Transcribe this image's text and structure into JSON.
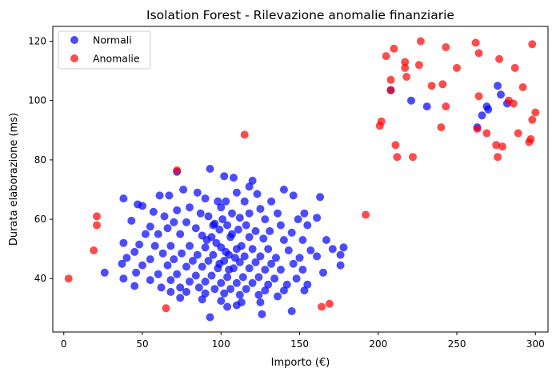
{
  "chart_data": {
    "type": "scatter",
    "title": "Isolation Forest - Rilevazione anomalie finanziarie",
    "xlabel": "Importo (€)",
    "ylabel": "Durata elaborazione (ms)",
    "xlim": [
      -7,
      308
    ],
    "ylim": [
      22,
      125
    ],
    "xticks": [
      0,
      50,
      100,
      150,
      200,
      250,
      300
    ],
    "yticks": [
      40,
      60,
      80,
      100,
      120
    ],
    "grid": false,
    "legend_position": "top-left",
    "series": [
      {
        "name": "Normali",
        "color": "#0000ff",
        "points": [
          [
            93,
            77
          ],
          [
            72,
            76
          ],
          [
            102,
            74.5
          ],
          [
            108,
            74
          ],
          [
            120,
            73
          ],
          [
            118,
            71
          ],
          [
            76,
            70
          ],
          [
            140,
            70
          ],
          [
            85,
            69
          ],
          [
            110,
            69
          ],
          [
            123,
            68.5
          ],
          [
            61,
            68
          ],
          [
            67,
            68
          ],
          [
            38,
            67
          ],
          [
            163,
            67.5
          ],
          [
            146,
            68
          ],
          [
            90,
            67
          ],
          [
            98,
            66
          ],
          [
            115,
            66
          ],
          [
            132,
            66
          ],
          [
            103,
            66
          ],
          [
            47,
            65
          ],
          [
            50,
            64.5
          ],
          [
            80,
            64
          ],
          [
            100,
            64
          ],
          [
            125,
            63.5
          ],
          [
            72,
            63
          ],
          [
            57,
            62.5
          ],
          [
            87,
            62
          ],
          [
            107,
            62
          ],
          [
            118,
            62
          ],
          [
            136,
            62
          ],
          [
            153,
            62
          ],
          [
            64,
            61
          ],
          [
            92,
            61
          ],
          [
            112,
            60.5
          ],
          [
            128,
            60
          ],
          [
            149,
            60
          ],
          [
            161,
            60.5
          ],
          [
            43,
            59.5
          ],
          [
            70,
            59
          ],
          [
            78,
            59
          ],
          [
            96,
            58.5
          ],
          [
            104,
            58
          ],
          [
            116,
            58
          ],
          [
            138,
            58
          ],
          [
            155,
            58
          ],
          [
            55,
            57.5
          ],
          [
            66,
            57
          ],
          [
            84,
            57
          ],
          [
            99,
            56.5
          ],
          [
            111,
            56.5
          ],
          [
            122,
            56
          ],
          [
            131,
            56
          ],
          [
            145,
            55.5
          ],
          [
            52,
            55
          ],
          [
            60,
            55
          ],
          [
            74,
            55
          ],
          [
            88,
            54.5
          ],
          [
            94,
            54
          ],
          [
            106,
            54
          ],
          [
            118,
            54
          ],
          [
            127,
            53.5
          ],
          [
            140,
            53
          ],
          [
            152,
            53
          ],
          [
            167,
            53
          ],
          [
            178,
            50.5
          ],
          [
            38,
            52
          ],
          [
            48,
            51.5
          ],
          [
            58,
            51
          ],
          [
            68,
            51
          ],
          [
            80,
            51
          ],
          [
            90,
            50.5
          ],
          [
            100,
            50.5
          ],
          [
            110,
            50
          ],
          [
            120,
            50
          ],
          [
            130,
            50
          ],
          [
            143,
            49.5
          ],
          [
            157,
            49.5
          ],
          [
            171,
            50
          ],
          [
            176,
            48
          ],
          [
            45,
            49
          ],
          [
            63,
            48.5
          ],
          [
            75,
            48.5
          ],
          [
            85,
            48
          ],
          [
            95,
            48
          ],
          [
            105,
            48
          ],
          [
            115,
            47.5
          ],
          [
            125,
            47.5
          ],
          [
            135,
            47
          ],
          [
            150,
            47
          ],
          [
            161,
            47.5
          ],
          [
            40,
            47
          ],
          [
            55,
            46.5
          ],
          [
            70,
            46.5
          ],
          [
            82,
            46
          ],
          [
            92,
            46
          ],
          [
            102,
            46
          ],
          [
            112,
            45.5
          ],
          [
            122,
            45.5
          ],
          [
            132,
            45
          ],
          [
            146,
            45
          ],
          [
            37,
            45
          ],
          [
            50,
            44.5
          ],
          [
            66,
            44.5
          ],
          [
            78,
            44
          ],
          [
            88,
            44
          ],
          [
            98,
            43.5
          ],
          [
            108,
            43.5
          ],
          [
            118,
            43.5
          ],
          [
            128,
            43
          ],
          [
            138,
            43
          ],
          [
            152,
            43
          ],
          [
            165,
            42
          ],
          [
            176,
            44.5
          ],
          [
            26,
            42
          ],
          [
            46,
            42
          ],
          [
            60,
            41.5
          ],
          [
            72,
            41.5
          ],
          [
            84,
            41
          ],
          [
            94,
            41
          ],
          [
            104,
            40.5
          ],
          [
            114,
            40.5
          ],
          [
            124,
            40.5
          ],
          [
            134,
            40
          ],
          [
            148,
            40
          ],
          [
            38,
            40
          ],
          [
            55,
            39.5
          ],
          [
            68,
            39.5
          ],
          [
            80,
            39
          ],
          [
            90,
            39
          ],
          [
            100,
            38.5
          ],
          [
            110,
            38.5
          ],
          [
            120,
            38.5
          ],
          [
            130,
            38
          ],
          [
            142,
            38
          ],
          [
            155,
            38
          ],
          [
            45,
            37.5
          ],
          [
            62,
            37
          ],
          [
            74,
            37
          ],
          [
            86,
            37
          ],
          [
            96,
            36.5
          ],
          [
            106,
            36.5
          ],
          [
            116,
            36.5
          ],
          [
            128,
            36
          ],
          [
            140,
            36
          ],
          [
            153,
            36
          ],
          [
            68,
            35.5
          ],
          [
            78,
            35.5
          ],
          [
            90,
            35
          ],
          [
            102,
            35
          ],
          [
            112,
            34.5
          ],
          [
            124,
            34.5
          ],
          [
            136,
            34
          ],
          [
            74,
            33.5
          ],
          [
            88,
            33
          ],
          [
            100,
            32.5
          ],
          [
            113,
            32
          ],
          [
            125,
            32
          ],
          [
            104,
            30.5
          ],
          [
            110,
            31
          ],
          [
            93,
            27
          ],
          [
            126,
            28
          ],
          [
            145,
            29
          ],
          [
            101,
            60
          ],
          [
            97,
            52
          ],
          [
            103,
            49
          ],
          [
            99,
            45
          ],
          [
            107,
            55
          ],
          [
            95,
            58
          ],
          [
            109,
            47
          ],
          [
            91,
            53
          ],
          [
            113,
            51
          ],
          [
            105,
            43
          ],
          [
            266,
            95
          ],
          [
            269,
            98
          ],
          [
            263,
            91
          ],
          [
            276,
            105
          ],
          [
            278,
            102
          ],
          [
            282,
            99
          ],
          [
            221,
            100
          ],
          [
            231,
            98
          ],
          [
            208,
            103.5
          ],
          [
            270,
            97
          ]
        ]
      },
      {
        "name": "Anomalie",
        "color": "#ff0000",
        "points": [
          [
            227,
            120
          ],
          [
            262,
            119.5
          ],
          [
            298,
            119
          ],
          [
            210,
            117.5
          ],
          [
            243,
            118
          ],
          [
            205,
            115
          ],
          [
            217,
            113
          ],
          [
            264,
            116
          ],
          [
            277,
            114
          ],
          [
            226,
            112
          ],
          [
            217,
            111
          ],
          [
            250,
            111
          ],
          [
            287,
            111
          ],
          [
            218,
            108
          ],
          [
            208,
            107
          ],
          [
            234,
            105
          ],
          [
            241,
            105.5
          ],
          [
            292,
            104.5
          ],
          [
            208,
            103.5
          ],
          [
            264,
            101.5
          ],
          [
            283,
            100
          ],
          [
            286,
            99
          ],
          [
            243,
            98
          ],
          [
            300,
            96
          ],
          [
            202,
            93
          ],
          [
            201,
            91.5
          ],
          [
            240,
            91
          ],
          [
            263,
            90.5
          ],
          [
            298,
            93.5
          ],
          [
            269,
            89
          ],
          [
            289,
            89
          ],
          [
            297,
            87
          ],
          [
            296,
            86
          ],
          [
            275,
            85
          ],
          [
            279,
            84.5
          ],
          [
            211,
            85
          ],
          [
            212,
            81
          ],
          [
            222,
            81
          ],
          [
            276,
            81
          ],
          [
            115,
            88.5
          ],
          [
            72,
            76.5
          ],
          [
            192,
            61.5
          ],
          [
            21,
            61
          ],
          [
            21,
            58
          ],
          [
            19,
            49.5
          ],
          [
            3,
            40
          ],
          [
            65,
            30
          ],
          [
            164,
            30.5
          ],
          [
            169,
            31.5
          ]
        ]
      }
    ]
  }
}
